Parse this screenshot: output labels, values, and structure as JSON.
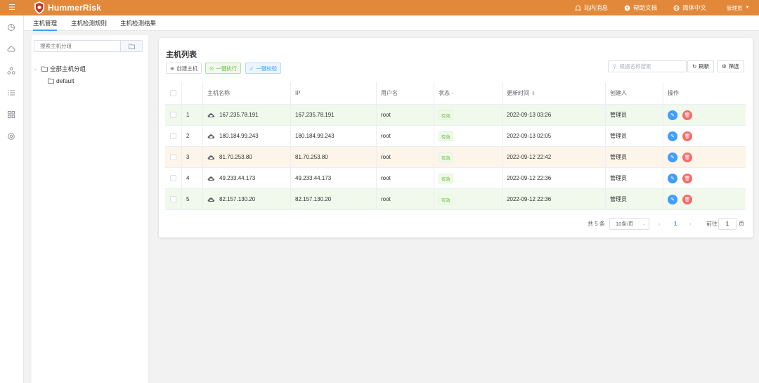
{
  "header": {
    "brand": "HummerRisk",
    "messages": "站内消息",
    "help": "帮助文档",
    "language": "简体中文",
    "user": "管理员"
  },
  "tabs": [
    {
      "label": "主机管理",
      "active": true
    },
    {
      "label": "主机检测规则",
      "active": false
    },
    {
      "label": "主机检测结果",
      "active": false
    }
  ],
  "tree": {
    "search_placeholder": "搜索主机分组",
    "root": "全部主机分组",
    "children": [
      "default"
    ]
  },
  "main": {
    "title": "主机列表",
    "create_label": "创建主机",
    "execute_label": "一键执行",
    "verify_label": "一键校验",
    "search_placeholder": "根据名称搜索",
    "refresh_label": "刷新",
    "filter_label": "筛选",
    "columns": {
      "name": "主机名称",
      "ip": "IP",
      "user": "用户名",
      "status": "状态",
      "updated": "更新时间",
      "creator": "创建人",
      "actions": "操作"
    },
    "rows": [
      {
        "index": "1",
        "name": "167.235.78.191",
        "ip": "167.235.78.191",
        "user": "root",
        "status": "有效",
        "updated": "2022-09-13 03:26",
        "creator": "管理员",
        "bg": "#f0f9eb"
      },
      {
        "index": "2",
        "name": "180.184.99.243",
        "ip": "180.184.99.243",
        "user": "root",
        "status": "有效",
        "updated": "2022-09-13 02:05",
        "creator": "管理员",
        "bg": "#ffffff"
      },
      {
        "index": "3",
        "name": "81.70.253.80",
        "ip": "81.70.253.80",
        "user": "root",
        "status": "有效",
        "updated": "2022-09-12 22:42",
        "creator": "管理员",
        "bg": "#fdf5e9"
      },
      {
        "index": "4",
        "name": "49.233.44.173",
        "ip": "49.233.44.173",
        "user": "root",
        "status": "有效",
        "updated": "2022-09-12 22:36",
        "creator": "管理员",
        "bg": "#ffffff"
      },
      {
        "index": "5",
        "name": "82.157.130.20",
        "ip": "82.157.130.20",
        "user": "root",
        "status": "有效",
        "updated": "2022-09-12 22:36",
        "creator": "管理员",
        "bg": "#f0f9eb"
      }
    ]
  },
  "pagination": {
    "total": "共 5 条",
    "page_size": "10条/页",
    "current": "1",
    "goto_label": "前往",
    "goto_value": "1",
    "page_suffix": "页"
  },
  "colors": {
    "brand": "#e2883a",
    "primary": "#409eff",
    "success": "#67c23a",
    "danger": "#f56c6c"
  }
}
